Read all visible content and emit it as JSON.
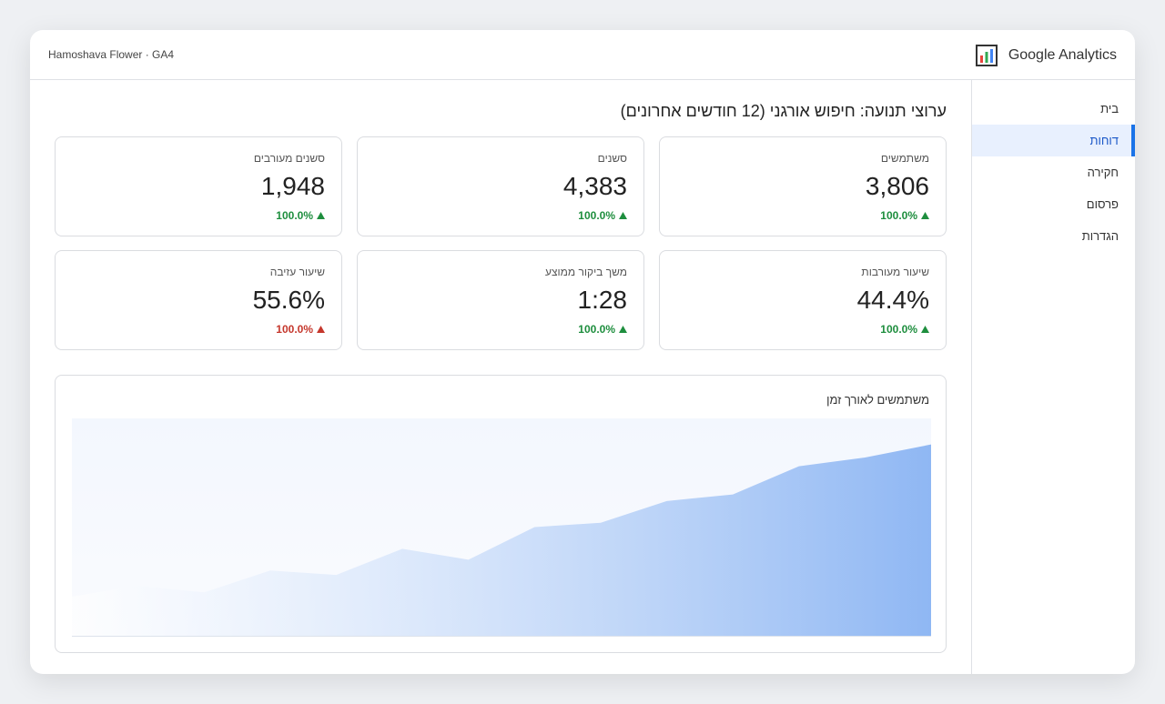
{
  "header": {
    "property": "Hamoshava Flower · GA4",
    "product": "Google Analytics"
  },
  "nav": [
    {
      "label": "בית"
    },
    {
      "label": "דוחות",
      "active": true
    },
    {
      "label": "חקירה"
    },
    {
      "label": "פרסום"
    },
    {
      "label": "הגדרות"
    }
  ],
  "page_title": "ערוצי תנועה: חיפוש אורגני (12 חודשים אחרונים)",
  "kpis": [
    {
      "label": "משתמשים",
      "value": "3,806",
      "change": "100.0%",
      "change_color": "#1e8e3e"
    },
    {
      "label": "סשנים",
      "value": "4,383",
      "change": "100.0%",
      "change_color": "#1e8e3e"
    },
    {
      "label": "סשנים מעורבים",
      "value": "1,948",
      "change": "100.0%",
      "change_color": "#1e8e3e"
    },
    {
      "label": "שיעור מעורבות",
      "value": "44.4%",
      "change": "100.0%",
      "change_color": "#1e8e3e"
    },
    {
      "label": "משך ביקור ממוצע",
      "value": "1:28",
      "change": "100.0%",
      "change_color": "#1e8e3e"
    },
    {
      "label": "שיעור עזיבה",
      "value": "55.6%",
      "change": "100.0%",
      "change_color": "#c5372c"
    }
  ],
  "chart_data": {
    "type": "area",
    "title": "משתמשים לאורך זמן",
    "values": [
      18,
      23,
      20,
      30,
      28,
      40,
      35,
      50,
      52,
      62,
      65,
      78,
      82,
      88
    ],
    "ylim": [
      0,
      100
    ],
    "color": "#8fb7f3"
  }
}
